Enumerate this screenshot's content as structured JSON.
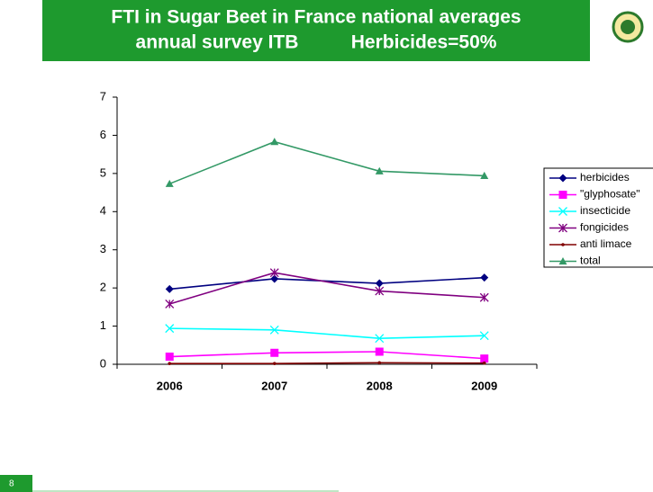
{
  "slide_number": "8",
  "chart_data": {
    "type": "line",
    "title": "FTI in Sugar Beet in France national averages",
    "subtitle": "annual survey ITB          Herbicides=50%",
    "categories": [
      "2006",
      "2007",
      "2008",
      "2009"
    ],
    "ylim": [
      0,
      7
    ],
    "yticks": [
      0,
      1,
      2,
      3,
      4,
      5,
      6,
      7
    ],
    "legend": "right",
    "series": [
      {
        "name": "herbicides",
        "color": "#000080",
        "marker": "diamond",
        "values": [
          1.97,
          2.24,
          2.12,
          2.27
        ]
      },
      {
        "name": "\"glyphosate\"",
        "color": "#ff00ff",
        "marker": "square",
        "values": [
          0.2,
          0.3,
          0.33,
          0.15
        ]
      },
      {
        "name": "insecticide",
        "color": "#00ffff",
        "marker": "x",
        "values": [
          0.94,
          0.9,
          0.68,
          0.75
        ]
      },
      {
        "name": "fongicides",
        "color": "#800080",
        "marker": "star",
        "values": [
          1.58,
          2.4,
          1.92,
          1.75
        ]
      },
      {
        "name": "anti limace",
        "color": "#800000",
        "marker": "dot",
        "values": [
          0.02,
          0.02,
          0.04,
          0.03
        ]
      },
      {
        "name": "total",
        "color": "#339966",
        "marker": "triangle",
        "values": [
          4.73,
          5.83,
          5.06,
          4.94
        ]
      }
    ]
  }
}
